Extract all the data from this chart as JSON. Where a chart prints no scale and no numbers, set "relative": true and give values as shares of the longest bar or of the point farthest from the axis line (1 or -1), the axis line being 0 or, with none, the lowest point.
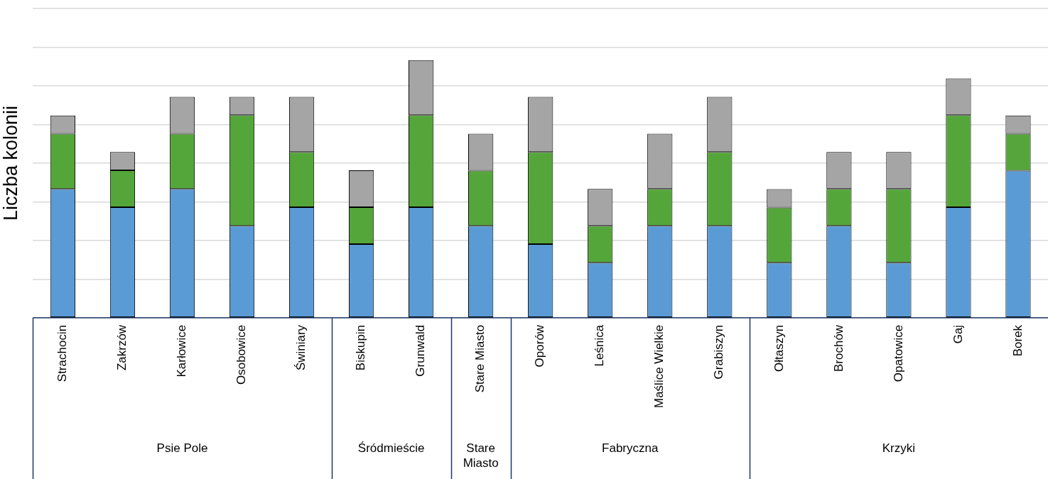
{
  "chart_data": {
    "type": "bar",
    "stacked": true,
    "relative": true,
    "ylabel": "Liczba kolonii",
    "grid": "y",
    "legend": false,
    "categories": [
      "Strachocin",
      "Zakrzów",
      "Karłowice",
      "Osobowice",
      "Świniary",
      "Biskupin",
      "Grunwald",
      "Stare Miasto",
      "Oporów",
      "Leśnica",
      "Maślice Wielkie",
      "Grabiszyn",
      "Ołtaszyn",
      "Brochów",
      "Opatowice",
      "Gaj",
      "Borek"
    ],
    "series": [
      {
        "color": "#5b9bd5",
        "values": [
          0.5,
          0.429,
          0.5,
          0.357,
          0.429,
          0.286,
          0.429,
          0.357,
          0.286,
          0.214,
          0.357,
          0.357,
          0.214,
          0.357,
          0.214,
          0.429,
          0.571
        ]
      },
      {
        "color": "#55a63a",
        "values": [
          0.214,
          0.143,
          0.214,
          0.429,
          0.214,
          0.143,
          0.357,
          0.214,
          0.357,
          0.143,
          0.143,
          0.286,
          0.214,
          0.143,
          0.286,
          0.357,
          0.143
        ]
      },
      {
        "color": "#a5a5a5",
        "values": [
          0.071,
          0.071,
          0.143,
          0.071,
          0.214,
          0.143,
          0.214,
          0.143,
          0.214,
          0.143,
          0.214,
          0.214,
          0.071,
          0.143,
          0.143,
          0.143,
          0.071
        ]
      }
    ],
    "annotations": [
      "Psie Pole",
      "Śródmieście",
      "Stare Miasto",
      "Fabryczna",
      "Krzyki"
    ]
  }
}
